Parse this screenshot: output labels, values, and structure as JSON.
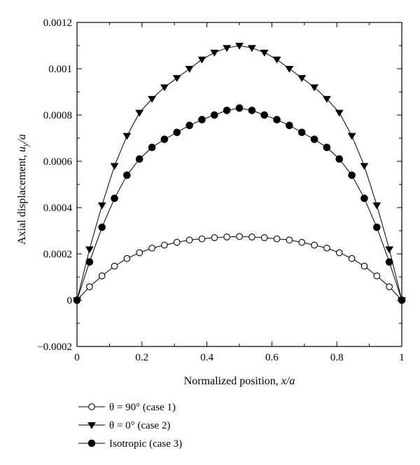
{
  "chart_data": {
    "type": "line",
    "xlabel": {
      "main": "Normalized position, ",
      "var": "x/a"
    },
    "ylabel": {
      "main": "Axial displacement, ",
      "var": "u",
      "sub": "y",
      "tail": "/a"
    },
    "xlim": [
      0,
      1
    ],
    "ylim": [
      -0.0002,
      0.0012
    ],
    "xticks": [
      {
        "value": 0,
        "label": "0"
      },
      {
        "value": 0.2,
        "label": "0.2"
      },
      {
        "value": 0.4,
        "label": "0.4"
      },
      {
        "value": 0.6,
        "label": "0.6"
      },
      {
        "value": 0.8,
        "label": "0.8"
      },
      {
        "value": 1,
        "label": "1"
      }
    ],
    "yticks": [
      {
        "value": -0.0002,
        "label": "−0.0002"
      },
      {
        "value": 0,
        "label": "0"
      },
      {
        "value": 0.0002,
        "label": "0.0002"
      },
      {
        "value": 0.0004,
        "label": "0.0004"
      },
      {
        "value": 0.0006,
        "label": "0.0006"
      },
      {
        "value": 0.0008,
        "label": "0.0008"
      },
      {
        "value": 0.001,
        "label": "0.001"
      },
      {
        "value": 0.0012,
        "label": "0.0012"
      }
    ],
    "grid": false,
    "legend_position": "below",
    "series": [
      {
        "name": "θ = 90° (case 1)",
        "marker": "circle-open",
        "color": "#000000",
        "x": [
          0,
          0.0385,
          0.0769,
          0.1154,
          0.1538,
          0.1923,
          0.2308,
          0.2692,
          0.3077,
          0.3462,
          0.3846,
          0.4231,
          0.4615,
          0.5,
          0.5385,
          0.5769,
          0.6154,
          0.6538,
          0.6923,
          0.7308,
          0.7692,
          0.8077,
          0.8462,
          0.8846,
          0.9231,
          0.9615,
          1
        ],
        "y": [
          0,
          5.8e-05,
          0.000105,
          0.000147,
          0.00018,
          0.000205,
          0.000225,
          0.000238,
          0.00025,
          0.00026,
          0.000265,
          0.00027,
          0.000273,
          0.000275,
          0.000273,
          0.00027,
          0.000265,
          0.00026,
          0.00025,
          0.000238,
          0.000225,
          0.000205,
          0.00018,
          0.000147,
          0.000105,
          5.8e-05,
          0
        ]
      },
      {
        "name": "θ = 0° (case 2)",
        "marker": "triangle-down-filled",
        "color": "#000000",
        "x": [
          0,
          0.0385,
          0.0769,
          0.1154,
          0.1538,
          0.1923,
          0.2308,
          0.2692,
          0.3077,
          0.3462,
          0.3846,
          0.4231,
          0.4615,
          0.5,
          0.5385,
          0.5769,
          0.6154,
          0.6538,
          0.6923,
          0.7308,
          0.7692,
          0.8077,
          0.8462,
          0.8846,
          0.9231,
          0.9615,
          1
        ],
        "y": [
          0,
          0.00022,
          0.00041,
          0.00058,
          0.00071,
          0.00081,
          0.00087,
          0.00092,
          0.00096,
          0.001,
          0.00104,
          0.00107,
          0.00109,
          0.0011,
          0.00109,
          0.00107,
          0.00104,
          0.001,
          0.00096,
          0.00092,
          0.00087,
          0.00081,
          0.00071,
          0.00058,
          0.00041,
          0.00022,
          0
        ]
      },
      {
        "name": "Isotropic (case 3)",
        "marker": "circle-filled",
        "color": "#000000",
        "x": [
          0,
          0.0385,
          0.0769,
          0.1154,
          0.1538,
          0.1923,
          0.2308,
          0.2692,
          0.3077,
          0.3462,
          0.3846,
          0.4231,
          0.4615,
          0.5,
          0.5385,
          0.5769,
          0.6154,
          0.6538,
          0.6923,
          0.7308,
          0.7692,
          0.8077,
          0.8462,
          0.8846,
          0.9231,
          0.9615,
          1
        ],
        "y": [
          0,
          0.000165,
          0.000315,
          0.00044,
          0.00054,
          0.00061,
          0.00066,
          0.000695,
          0.000725,
          0.000755,
          0.00078,
          0.0008,
          0.00082,
          0.00083,
          0.00082,
          0.0008,
          0.00078,
          0.000755,
          0.000725,
          0.000695,
          0.00066,
          0.00061,
          0.00054,
          0.00044,
          0.000315,
          0.000165,
          0
        ]
      }
    ]
  }
}
